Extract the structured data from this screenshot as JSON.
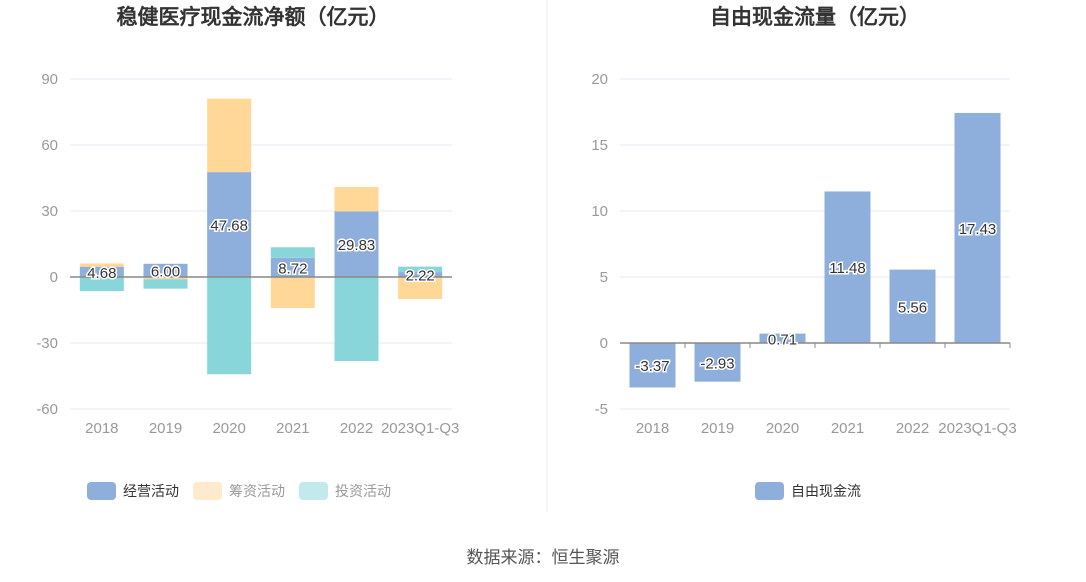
{
  "chart_data": [
    {
      "type": "bar",
      "stacked": true,
      "title": "稳健医疗现金流净额（亿元）",
      "categories": [
        "2018",
        "2019",
        "2020",
        "2021",
        "2022",
        "2023Q1-Q3"
      ],
      "ylim": [
        -60,
        90
      ],
      "yticks": [
        90,
        60,
        30,
        0,
        -30,
        -60
      ],
      "series": [
        {
          "name": "经营活动",
          "color": "#8eaedb",
          "values": [
            4.68,
            6.0,
            47.68,
            8.72,
            29.83,
            2.22
          ],
          "labels": true
        },
        {
          "name": "筹资活动",
          "color": "#ffd898",
          "legend_color": "#ffebcb",
          "values": [
            1.5,
            -1.0,
            33.4,
            -14.1,
            11.1,
            -10.0
          ]
        },
        {
          "name": "投资活动",
          "color": "#88d6da",
          "legend_color": "#c2eaec",
          "values": [
            -6.4,
            -4.3,
            -44.2,
            4.8,
            -38.2,
            2.5
          ]
        }
      ],
      "legend": "bottom"
    },
    {
      "type": "bar",
      "title": "自由现金流量（亿元）",
      "categories": [
        "2018",
        "2019",
        "2020",
        "2021",
        "2022",
        "2023Q1-Q3"
      ],
      "ylim": [
        -5,
        20
      ],
      "yticks": [
        20,
        15,
        10,
        5,
        0,
        -5
      ],
      "series": [
        {
          "name": "自由现金流",
          "color": "#8eaedb",
          "values": [
            -3.37,
            -2.93,
            0.71,
            11.48,
            5.56,
            17.43
          ],
          "labels": true
        }
      ],
      "legend": "bottom"
    }
  ],
  "source": "数据来源：恒生聚源"
}
